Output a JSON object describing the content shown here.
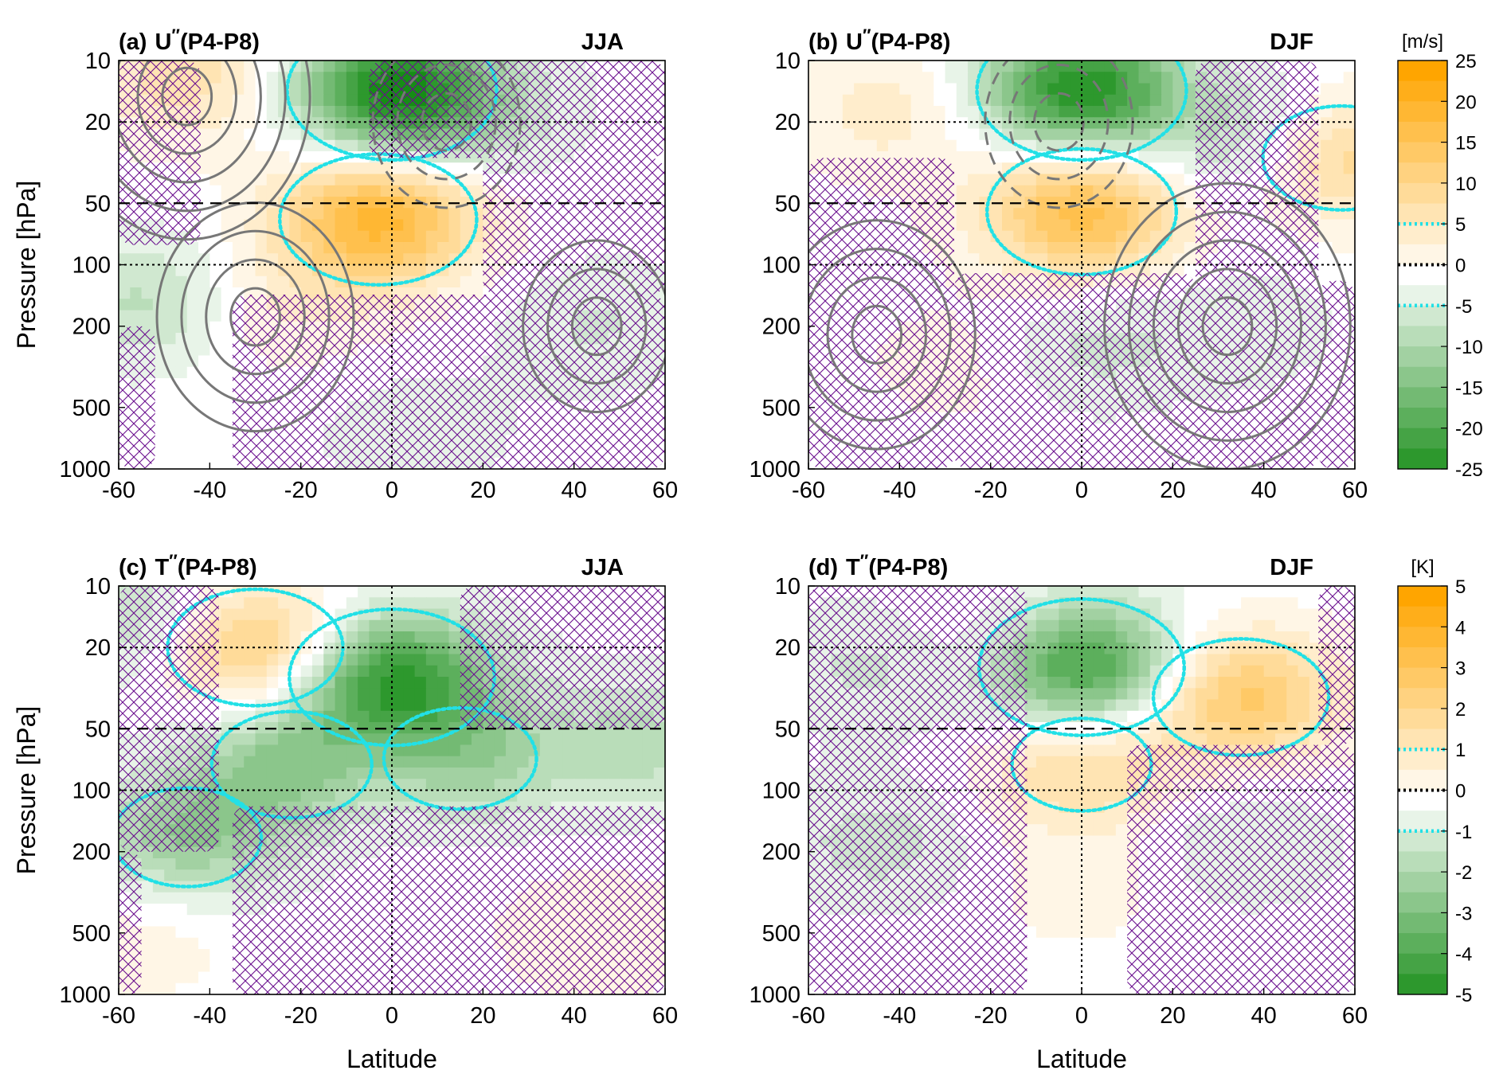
{
  "figure": {
    "colors": {
      "positive_max": "#ffa500",
      "negative_max": "#168c16",
      "neutral": "#ffffff",
      "contour_gray": "#777777",
      "highlight_contour": "#22e0e6",
      "hatch": "#6a0f8e"
    }
  },
  "chart_data": [
    {
      "id": "a",
      "type": "heatmap",
      "panel_label": "(a)",
      "variable": "U",
      "superscript": "′′",
      "suffix": "(P4-P8)",
      "season": "JJA",
      "xlabel": "",
      "ylabel": "Pressure [hPa]",
      "x_ticks": [
        "-60",
        "-40",
        "-20",
        "0",
        "20",
        "40",
        "60"
      ],
      "y_ticks": [
        "10",
        "20",
        "50",
        "100",
        "200",
        "500",
        "1000"
      ],
      "xlim": [
        -60,
        60
      ],
      "ylim": [
        1000,
        10
      ],
      "y_scale": "log",
      "reference_lines": {
        "vertical": [
          0
        ],
        "dotted_pressure": [
          20,
          100
        ],
        "dashed_pressure": [
          50
        ]
      },
      "anomalies": [
        {
          "lat": -3,
          "p": 60,
          "value": 20
        },
        {
          "lat": 0,
          "p": 14,
          "value": -24
        },
        {
          "lat": -45,
          "p": 12,
          "value": 8
        },
        {
          "lat": -54,
          "p": 150,
          "value": -7
        },
        {
          "lat": -25,
          "p": 160,
          "value": 4
        },
        {
          "lat": 18,
          "p": 18,
          "value": -5
        },
        {
          "lat": 45,
          "p": 200,
          "value": -4
        },
        {
          "lat": 5,
          "p": 700,
          "value": -3
        }
      ],
      "climatology_contours": [
        {
          "lat": -30,
          "p": 180,
          "value": 30
        },
        {
          "lat": 45,
          "p": 200,
          "value": 20
        },
        {
          "lat": -45,
          "p": 15,
          "value": 40
        },
        {
          "lat": 12,
          "p": 20,
          "value": -25
        }
      ],
      "hatched_regions": [
        {
          "lat_min": -60,
          "lat_max": -42,
          "p_min": 10,
          "p_max": 80
        },
        {
          "lat_min": -35,
          "lat_max": 60,
          "p_min": 140,
          "p_max": 1000
        },
        {
          "lat_min": -5,
          "lat_max": 60,
          "p_min": 10,
          "p_max": 30
        },
        {
          "lat_min": 20,
          "lat_max": 60,
          "p_min": 30,
          "p_max": 140
        },
        {
          "lat_min": -60,
          "lat_max": -52,
          "p_min": 200,
          "p_max": 1000
        }
      ]
    },
    {
      "id": "b",
      "type": "heatmap",
      "panel_label": "(b)",
      "variable": "U",
      "superscript": "′′",
      "suffix": "(P4-P8)",
      "season": "DJF",
      "xlabel": "",
      "ylabel": "",
      "x_ticks": [
        "-60",
        "-40",
        "-20",
        "0",
        "20",
        "40",
        "60"
      ],
      "y_ticks": [
        "10",
        "20",
        "50",
        "100",
        "200",
        "500",
        "1000"
      ],
      "xlim": [
        -60,
        60
      ],
      "ylim": [
        1000,
        10
      ],
      "y_scale": "log",
      "reference_lines": {
        "vertical": [
          0
        ],
        "dotted_pressure": [
          20,
          100
        ],
        "dashed_pressure": [
          50
        ]
      },
      "anomalies": [
        {
          "lat": 0,
          "p": 55,
          "value": 18
        },
        {
          "lat": 0,
          "p": 14,
          "value": -24
        },
        {
          "lat": 38,
          "p": 25,
          "value": -8
        },
        {
          "lat": 57,
          "p": 30,
          "value": 12
        },
        {
          "lat": -42,
          "p": 18,
          "value": 5
        },
        {
          "lat": 0,
          "p": 250,
          "value": -5
        },
        {
          "lat": -25,
          "p": 300,
          "value": 3
        },
        {
          "lat": 35,
          "p": 200,
          "value": -3
        }
      ],
      "climatology_contours": [
        {
          "lat": -45,
          "p": 220,
          "value": 30
        },
        {
          "lat": 32,
          "p": 200,
          "value": 40
        },
        {
          "lat": -5,
          "p": 20,
          "value": -25
        }
      ],
      "hatched_regions": [
        {
          "lat_min": -60,
          "lat_max": -28,
          "p_min": 30,
          "p_max": 1000
        },
        {
          "lat_min": -28,
          "lat_max": 25,
          "p_min": 110,
          "p_max": 1000
        },
        {
          "lat_min": 25,
          "lat_max": 52,
          "p_min": 10,
          "p_max": 1000
        },
        {
          "lat_min": 52,
          "lat_max": 60,
          "p_min": 120,
          "p_max": 1000
        }
      ]
    },
    {
      "id": "c",
      "type": "heatmap",
      "panel_label": "(c)",
      "variable": "T",
      "superscript": "′′",
      "suffix": "(P4-P8)",
      "season": "JJA",
      "xlabel": "Latitude",
      "ylabel": "Pressure [hPa]",
      "x_ticks": [
        "-60",
        "-40",
        "-20",
        "0",
        "20",
        "40",
        "60"
      ],
      "y_ticks": [
        "10",
        "20",
        "50",
        "100",
        "200",
        "500",
        "1000"
      ],
      "xlim": [
        -60,
        60
      ],
      "ylim": [
        1000,
        10
      ],
      "y_scale": "log",
      "reference_lines": {
        "vertical": [
          0
        ],
        "dotted_pressure": [
          20,
          100
        ],
        "dashed_pressure": [
          50
        ]
      },
      "anomalies": [
        {
          "lat": -30,
          "p": 20,
          "value": 3
        },
        {
          "lat": 0,
          "p": 28,
          "value": -4.5
        },
        {
          "lat": -22,
          "p": 75,
          "value": -2.5
        },
        {
          "lat": 15,
          "p": 70,
          "value": -2.3
        },
        {
          "lat": -45,
          "p": 170,
          "value": -2.2
        },
        {
          "lat": 55,
          "p": 60,
          "value": -1.5
        },
        {
          "lat": 0,
          "p": 75,
          "value": 0.8
        },
        {
          "lat": 45,
          "p": 500,
          "value": 0.7
        },
        {
          "lat": -55,
          "p": 500,
          "value": 0.6
        },
        {
          "lat": -55,
          "p": 15,
          "value": -1.5
        }
      ],
      "hatched_regions": [
        {
          "lat_min": -60,
          "lat_max": -38,
          "p_min": 10,
          "p_max": 200
        },
        {
          "lat_min": -60,
          "lat_max": -55,
          "p_min": 200,
          "p_max": 1000
        },
        {
          "lat_min": -35,
          "lat_max": 60,
          "p_min": 120,
          "p_max": 1000
        },
        {
          "lat_min": 15,
          "lat_max": 60,
          "p_min": 10,
          "p_max": 50
        }
      ]
    },
    {
      "id": "d",
      "type": "heatmap",
      "panel_label": "(d)",
      "variable": "T",
      "superscript": "′′",
      "suffix": "(P4-P8)",
      "season": "DJF",
      "xlabel": "Latitude",
      "ylabel": "",
      "x_ticks": [
        "-60",
        "-40",
        "-20",
        "0",
        "20",
        "40",
        "60"
      ],
      "y_ticks": [
        "10",
        "20",
        "50",
        "100",
        "200",
        "500",
        "1000"
      ],
      "xlim": [
        -60,
        60
      ],
      "ylim": [
        1000,
        10
      ],
      "y_scale": "log",
      "reference_lines": {
        "vertical": [
          0
        ],
        "dotted_pressure": [
          20,
          100
        ],
        "dashed_pressure": [
          50
        ]
      },
      "anomalies": [
        {
          "lat": 0,
          "p": 25,
          "value": -4.5
        },
        {
          "lat": 35,
          "p": 35,
          "value": 3
        },
        {
          "lat": 0,
          "p": 75,
          "value": 2
        },
        {
          "lat": -20,
          "p": 20,
          "value": 1
        },
        {
          "lat": -45,
          "p": 25,
          "value": -1
        },
        {
          "lat": 0,
          "p": 300,
          "value": 0.5
        },
        {
          "lat": -45,
          "p": 180,
          "value": -1
        },
        {
          "lat": 35,
          "p": 180,
          "value": -0.8
        }
      ],
      "hatched_regions": [
        {
          "lat_min": -60,
          "lat_max": -12,
          "p_min": 10,
          "p_max": 1000
        },
        {
          "lat_min": 10,
          "lat_max": 60,
          "p_min": 60,
          "p_max": 1000
        },
        {
          "lat_min": 52,
          "lat_max": 60,
          "p_min": 10,
          "p_max": 60
        }
      ]
    }
  ],
  "colorbars": [
    {
      "id": "u",
      "unit": "[m/s]",
      "ticks": [
        "25",
        "20",
        "15",
        "10",
        "5",
        "0",
        "-5",
        "-10",
        "-15",
        "-20",
        "-25"
      ],
      "values": [
        25,
        20,
        15,
        10,
        5,
        0,
        -5,
        -10,
        -15,
        -20,
        -25
      ],
      "highlight": [
        5,
        -5
      ],
      "zero_line": 0,
      "max": 25
    },
    {
      "id": "t",
      "unit": "[K]",
      "ticks": [
        "5",
        "4",
        "3",
        "2",
        "1",
        "0",
        "-1",
        "-2",
        "-3",
        "-4",
        "-5"
      ],
      "values": [
        5,
        4,
        3,
        2,
        1,
        0,
        -1,
        -2,
        -3,
        -4,
        -5
      ],
      "highlight": [
        1,
        -1
      ],
      "zero_line": 0,
      "max": 5
    }
  ]
}
